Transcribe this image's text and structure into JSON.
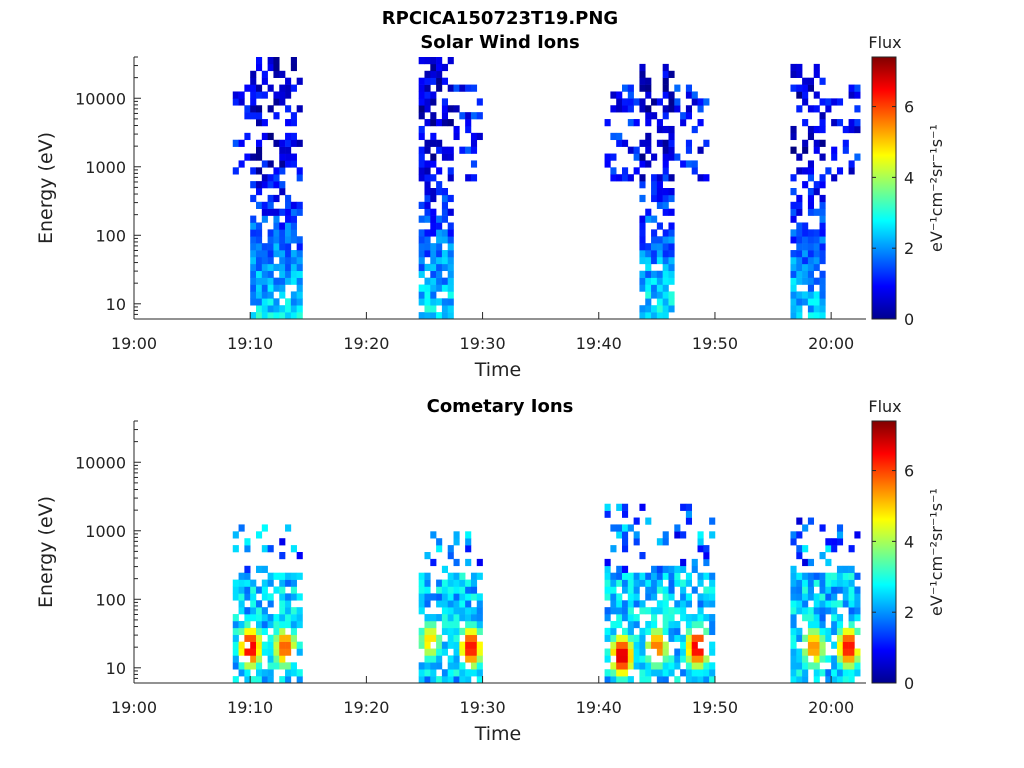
{
  "figure": {
    "title": "RPCICA150723T19.PNG"
  },
  "chart_data": [
    {
      "type": "heatmap",
      "title": "Solar Wind Ions",
      "xlabel": "Time",
      "ylabel": "Energy (eV)",
      "x_ticks": [
        "19:00",
        "19:10",
        "19:20",
        "19:30",
        "19:40",
        "19:50",
        "20:00"
      ],
      "xlim": [
        "19:00",
        "20:03"
      ],
      "y_scale": "log",
      "y_ticks": [
        10,
        100,
        1000,
        10000
      ],
      "y_tick_labels": [
        "10",
        "100",
        "1000",
        "10000"
      ],
      "ylim": [
        6,
        40000
      ],
      "colorbar": {
        "label": "Flux",
        "units": "eV⁻¹cm⁻²sr⁻¹s⁻¹",
        "ticks": [
          "0",
          "2",
          "4",
          "6"
        ],
        "range": [
          0,
          7.4
        ]
      },
      "bursts": [
        {
          "t0": "19:10",
          "t1": "19:14:30",
          "wing_start": "19:08:30",
          "e_min": 6,
          "e_max": 40000,
          "low_energy_level": 2.6,
          "high_energy_level": 0.6
        },
        {
          "t0": "19:24:30",
          "t1": "19:27:30",
          "wing_end": "19:30",
          "e_min": 6,
          "e_max": 40000,
          "low_energy_level": 2.6,
          "high_energy_level": 0.6
        },
        {
          "t0": "19:43:30",
          "t1": "19:46:30",
          "wing_start": "19:40:30",
          "wing_end": "19:49:30",
          "e_min": 6,
          "e_max": 30000,
          "low_energy_level": 2.7,
          "high_energy_level": 0.6
        },
        {
          "t0": "19:56:30",
          "t1": "19:59:30",
          "wing_end": "20:02:30",
          "e_min": 6,
          "e_max": 30000,
          "low_energy_level": 2.5,
          "high_energy_level": 0.6
        }
      ]
    },
    {
      "type": "heatmap",
      "title": "Cometary Ions",
      "xlabel": "Time",
      "ylabel": "Energy (eV)",
      "x_ticks": [
        "19:00",
        "19:10",
        "19:20",
        "19:30",
        "19:40",
        "19:50",
        "20:00"
      ],
      "xlim": [
        "19:00",
        "20:03"
      ],
      "y_scale": "log",
      "y_ticks": [
        10,
        100,
        1000,
        10000
      ],
      "y_tick_labels": [
        "10",
        "100",
        "1000",
        "10000"
      ],
      "ylim": [
        6,
        40000
      ],
      "colorbar": {
        "label": "Flux",
        "units": "eV⁻¹cm⁻²sr⁻¹s⁻¹",
        "ticks": [
          "0",
          "2",
          "4",
          "6"
        ],
        "range": [
          0,
          7.4
        ]
      },
      "bursts": [
        {
          "t0": "19:08:30",
          "t1": "19:14:30",
          "e_min": 6,
          "e_max": 1200,
          "peaks": [
            {
              "t": "19:10",
              "e": 20,
              "level": 6.8
            },
            {
              "t": "19:13",
              "e": 20,
              "level": 6.0
            }
          ]
        },
        {
          "t0": "19:24:30",
          "t1": "19:30",
          "e_min": 6,
          "e_max": 1000,
          "peaks": [
            {
              "t": "19:25:30",
              "e": 25,
              "level": 5.0
            },
            {
              "t": "19:29",
              "e": 20,
              "level": 6.6
            }
          ]
        },
        {
          "t0": "19:40:30",
          "t1": "19:50",
          "e_min": 6,
          "e_max": 2000,
          "peaks": [
            {
              "t": "19:42",
              "e": 15,
              "level": 7.0
            },
            {
              "t": "19:45",
              "e": 20,
              "level": 5.8
            },
            {
              "t": "19:48:30",
              "e": 20,
              "level": 6.8
            }
          ]
        },
        {
          "t0": "19:56:30",
          "t1": "20:02:30",
          "e_min": 6,
          "e_max": 1300,
          "peaks": [
            {
              "t": "19:58:30",
              "e": 20,
              "level": 5.6
            },
            {
              "t": "20:01:30",
              "e": 20,
              "level": 6.6
            }
          ]
        }
      ]
    }
  ]
}
